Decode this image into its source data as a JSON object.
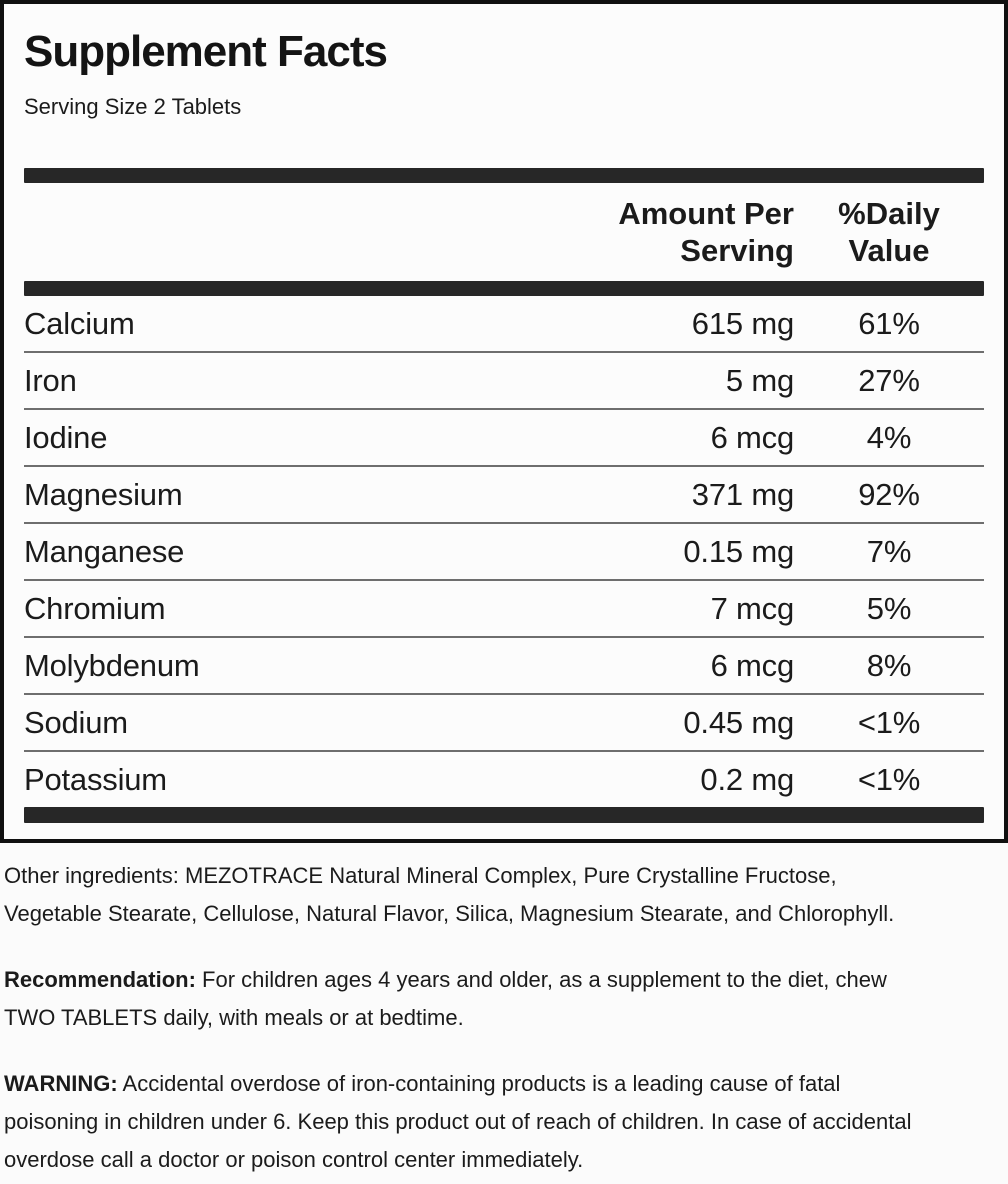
{
  "label": {
    "title": "Supplement Facts",
    "serving_size": "Serving Size 2 Tablets",
    "col_amount_header": "Amount Per\nServing",
    "col_dv_header": "%Daily\nValue",
    "rows": [
      {
        "name": "Calcium",
        "amount": "615 mg",
        "dv": "61%"
      },
      {
        "name": "Iron",
        "amount": "5 mg",
        "dv": "27%"
      },
      {
        "name": "Iodine",
        "amount": "6 mcg",
        "dv": "4%"
      },
      {
        "name": "Magnesium",
        "amount": "371 mg",
        "dv": "92%"
      },
      {
        "name": "Manganese",
        "amount": "0.15 mg",
        "dv": "7%"
      },
      {
        "name": "Chromium",
        "amount": "7 mcg",
        "dv": "5%"
      },
      {
        "name": "Molybdenum",
        "amount": "6 mcg",
        "dv": "8%"
      },
      {
        "name": "Sodium",
        "amount": "0.45 mg",
        "dv": "<1%"
      },
      {
        "name": "Potassium",
        "amount": "0.2 mg",
        "dv": "<1%"
      }
    ]
  },
  "footnotes": {
    "other_ingredients_label": "Other ingredients:",
    "other_ingredients_text": " MEZOTRACE Natural Mineral Complex, Pure Crystalline Fructose,\nVegetable Stearate, Cellulose, Natural Flavor, Silica, Magnesium Stearate, and Chlorophyll.",
    "recommendation_label": "Recommendation:",
    "recommendation_text": " For children ages 4 years and older, as a supplement to the diet, chew\nTWO TABLETS daily, with meals or at bedtime.",
    "warning_label": "WARNING:",
    "warning_text": " Accidental overdose of iron-containing products is a leading cause of fatal\npoisoning in children under 6. Keep this product out of reach of children. In case of accidental\noverdose call a doctor or poison control center immediately."
  },
  "colors": {
    "border": "#101010",
    "thick_bar": "#272727",
    "row_separator": "#6e6e6e",
    "text": "#1b1b1b",
    "panel_background": "#fcfcfc"
  }
}
